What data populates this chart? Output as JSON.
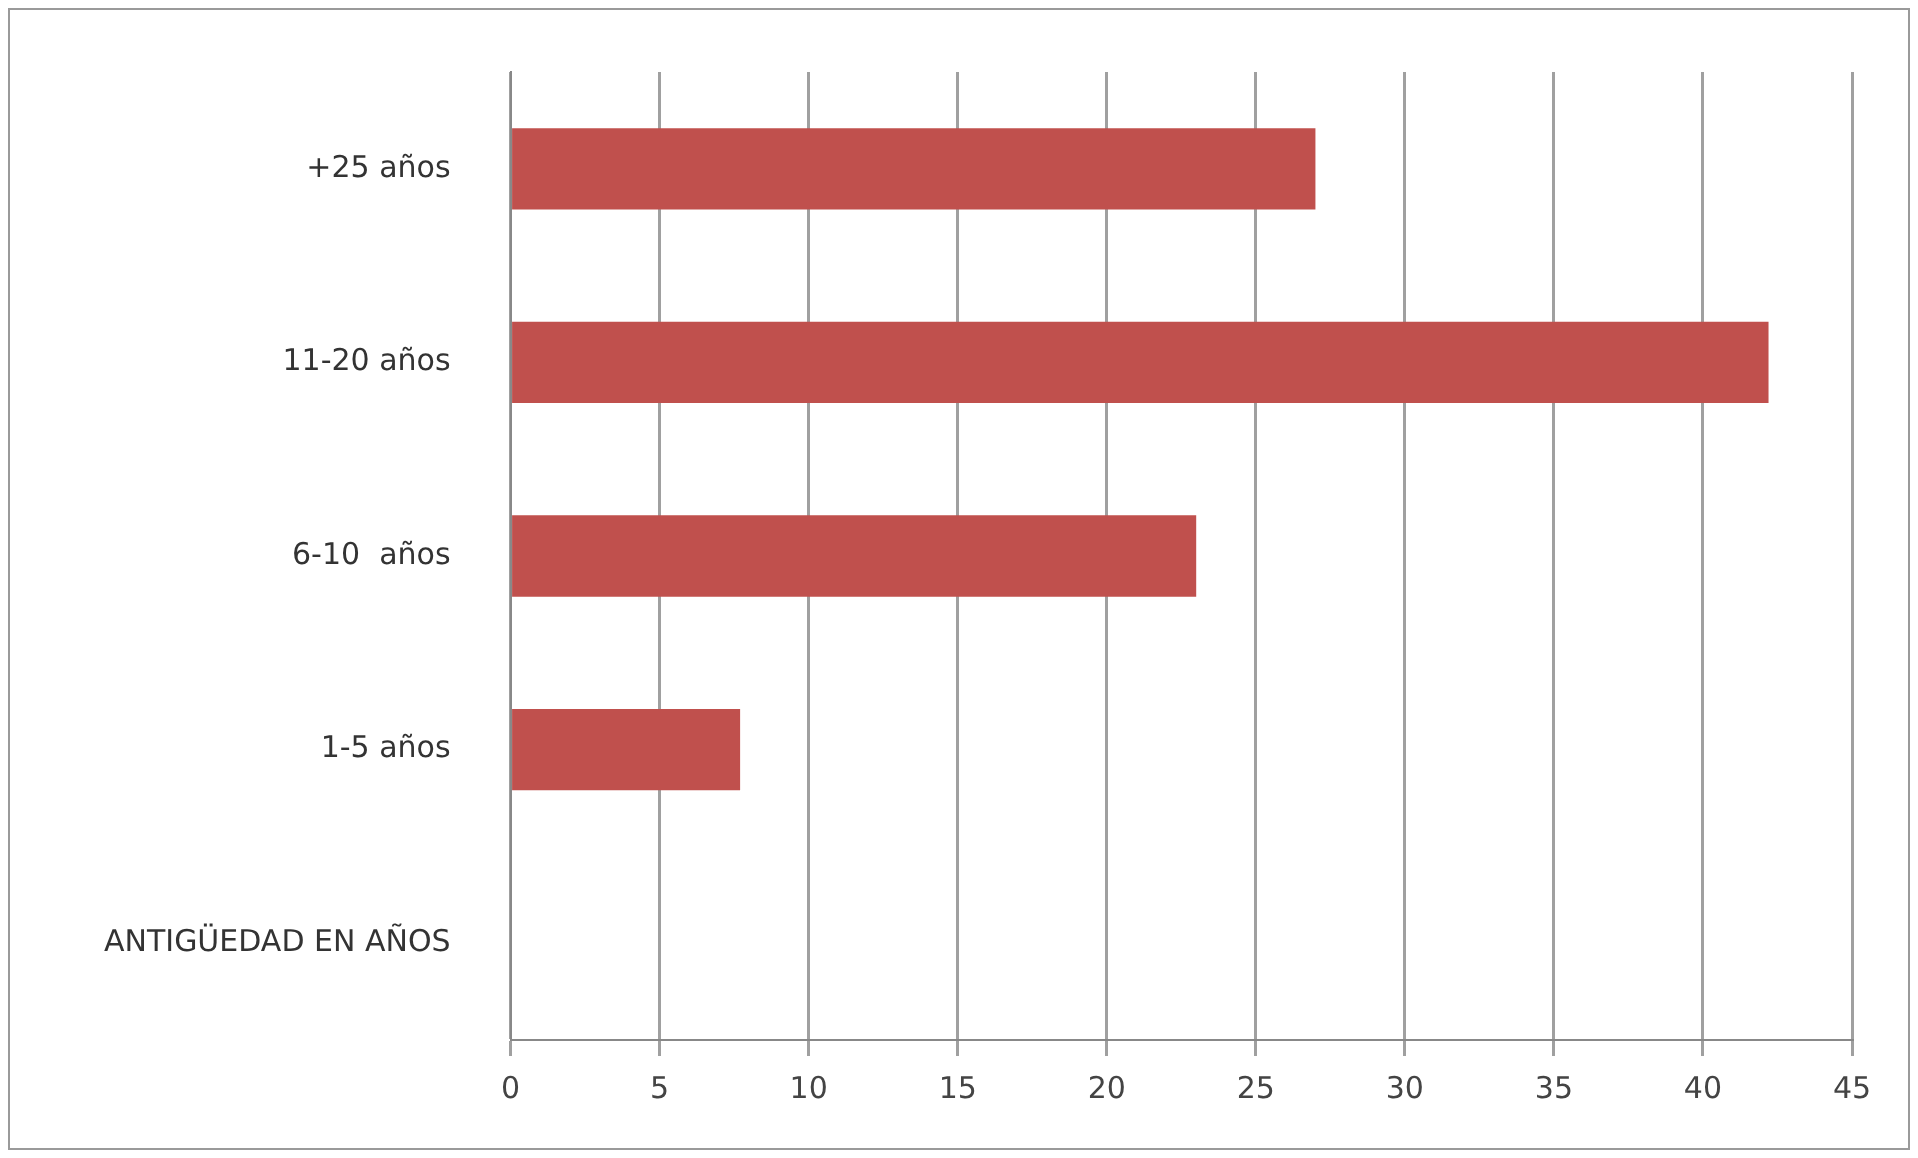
{
  "chart_data": {
    "type": "bar",
    "orientation": "horizontal",
    "categories": [
      "+25 años",
      "11-20 años",
      "6-10  años",
      "1-5 años",
      "ANTIGÜEDAD EN AÑOS"
    ],
    "values": [
      27,
      42.2,
      23,
      7.7,
      null
    ],
    "color": "#c0504d",
    "xlim": [
      0,
      45
    ],
    "xticks": [
      0,
      5,
      10,
      15,
      20,
      25,
      30,
      35,
      40,
      45
    ],
    "grid": "x"
  }
}
